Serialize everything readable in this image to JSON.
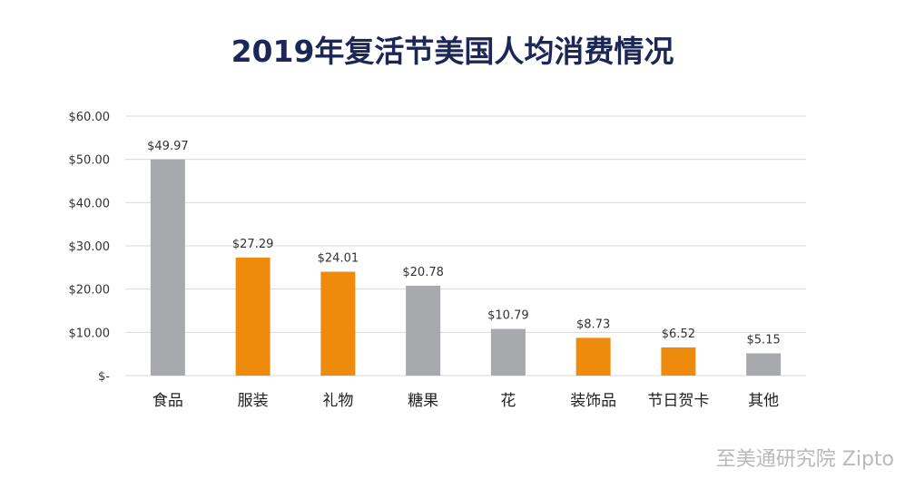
{
  "chart_data": {
    "type": "bar",
    "title": "2019年复活节美国人均消费情况",
    "categories": [
      "食品",
      "服装",
      "礼物",
      "糖果",
      "花",
      "装饰品",
      "节日贺卡",
      "其他"
    ],
    "values": [
      49.97,
      27.29,
      24.01,
      20.78,
      10.79,
      8.73,
      6.52,
      5.15
    ],
    "value_labels": [
      "$49.97",
      "$27.29",
      "$24.01",
      "$20.78",
      "$10.79",
      "$8.73",
      "$6.52",
      "$5.15"
    ],
    "bar_colors": [
      "#a7a9ac",
      "#ee8a0c",
      "#ee8a0c",
      "#a7a9ac",
      "#a7a9ac",
      "#ee8a0c",
      "#ee8a0c",
      "#a7a9ac"
    ],
    "y_ticks": [
      0,
      10,
      20,
      30,
      40,
      50,
      60
    ],
    "y_tick_labels": [
      "$-",
      "$10.00",
      "$20.00",
      "$30.00",
      "$40.00",
      "$50.00",
      "$60.00"
    ],
    "ylim": [
      0,
      60
    ],
    "grid": true,
    "xlabel": "",
    "ylabel": ""
  },
  "watermark": "至美通研究院 Zipto",
  "colors": {
    "title": "#1c2757",
    "grid": "#d9d9d9",
    "gray_bar": "#a7a9ac",
    "orange_bar": "#ee8a0c"
  }
}
